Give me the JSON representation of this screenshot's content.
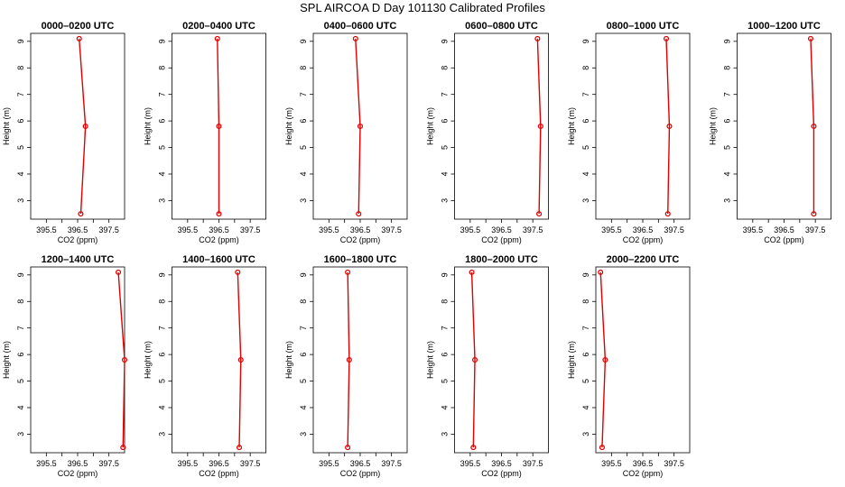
{
  "title": "SPL AIRCOA D  Day 101130  Calibrated Profiles",
  "colors": {
    "series": "#e00000",
    "axes": "#000000",
    "background": "#ffffff"
  },
  "chart_data": {
    "type": "line",
    "xlabel": "CO2 (ppm)",
    "ylabel": "Height (m)",
    "xlim": [
      395.0,
      398.0
    ],
    "ylim": [
      2.3,
      9.3
    ],
    "xticks": [
      "395.5",
      "396.5",
      "397.5"
    ],
    "xtick_values": [
      395.5,
      396,
      396.5,
      397,
      397.5
    ],
    "yticks": [
      "3",
      "4",
      "5",
      "6",
      "7",
      "8",
      "9"
    ],
    "ytick_values": [
      3,
      4,
      5,
      6,
      7,
      8,
      9
    ],
    "heights": [
      2.5,
      5.8,
      9.1
    ],
    "grid": false,
    "panels": [
      {
        "title": "0000–0200 UTC",
        "co2": [
          396.6,
          396.75,
          396.55
        ]
      },
      {
        "title": "0200–0400 UTC",
        "co2": [
          396.5,
          396.5,
          396.45
        ]
      },
      {
        "title": "0400–0600 UTC",
        "co2": [
          396.45,
          396.5,
          396.35
        ]
      },
      {
        "title": "0600–0800 UTC",
        "co2": [
          397.7,
          397.75,
          397.65
        ]
      },
      {
        "title": "0800–1000 UTC",
        "co2": [
          397.3,
          397.35,
          397.25
        ]
      },
      {
        "title": "1000–1200 UTC",
        "co2": [
          397.45,
          397.45,
          397.35
        ]
      },
      {
        "title": "1200–1400 UTC",
        "co2": [
          397.95,
          398.0,
          397.8
        ]
      },
      {
        "title": "1400–1600 UTC",
        "co2": [
          397.15,
          397.2,
          397.1
        ]
      },
      {
        "title": "1600–1800 UTC",
        "co2": [
          396.1,
          396.15,
          396.1
        ]
      },
      {
        "title": "1800–2000 UTC",
        "co2": [
          395.6,
          395.65,
          395.55
        ]
      },
      {
        "title": "2000–2200 UTC",
        "co2": [
          395.2,
          395.3,
          395.15
        ]
      }
    ]
  }
}
